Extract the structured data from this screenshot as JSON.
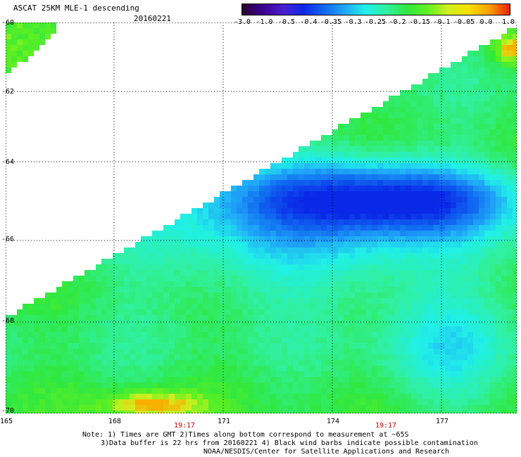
{
  "title": "ASCAT 25KM MLE-1 descending",
  "date": "20160221",
  "colorbar": {
    "ticks": [
      "-3.0",
      "-1.0",
      "-0.5",
      "-0.4",
      "-0.35",
      "-0.3",
      "-0.25",
      "-0.2",
      "-0.15",
      "-0.1",
      "-0.05",
      "0.0",
      "1.0"
    ],
    "colors": [
      "#2a0030",
      "#3a0090",
      "#4a20d0",
      "#0a28e8",
      "#1068f0",
      "#20a8f8",
      "#20f0e8",
      "#30f0a0",
      "#30e840",
      "#60f020",
      "#d0f020",
      "#f8e000",
      "#f8a000",
      "#f02000"
    ]
  },
  "axes": {
    "lat_labels": [
      "-60",
      "-62",
      "-64",
      "-66",
      "-68",
      "-70"
    ],
    "lon_labels": [
      "165",
      "168",
      "171",
      "174",
      "177"
    ],
    "gmt_labels": [
      "19:17",
      "19:17"
    ]
  },
  "notes": [
    "Note: 1) Times are GMT 2)Times along bottom correspond to measurement at ~65S",
    "3)Data buffer is 22 hrs from 20160221 4) Black wind barbs indicate possible contamination",
    "NOAA/NESDIS/Center for Satellite Applications and Research"
  ]
}
